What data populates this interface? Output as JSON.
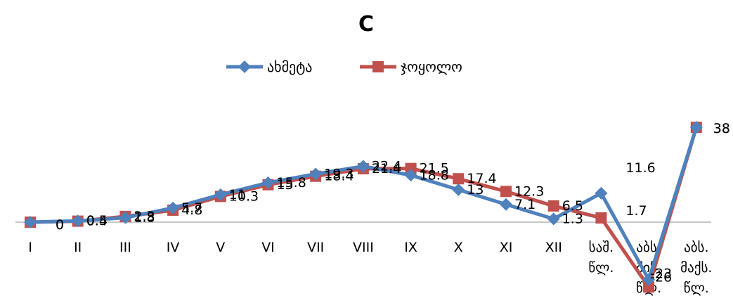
{
  "chart_data": {
    "type": "line",
    "title": "C",
    "xlabel": "",
    "ylabel": "",
    "legend_position": "top",
    "grid": false,
    "y_axis_visible": false,
    "ylim": [
      -30,
      45
    ],
    "categories": [
      [
        "I"
      ],
      [
        "II"
      ],
      [
        "III"
      ],
      [
        "IV"
      ],
      [
        "V"
      ],
      [
        "VI"
      ],
      [
        "VII"
      ],
      [
        "VIII"
      ],
      [
        "IX"
      ],
      [
        "X"
      ],
      [
        "XI"
      ],
      [
        "XII"
      ],
      [
        "საშ.",
        "წლ."
      ],
      [
        "აბს.",
        "მინ.",
        "წლ."
      ],
      [
        "აბს.",
        "მაქს.",
        "წლ."
      ]
    ],
    "series": [
      {
        "name": "ახმეტა",
        "color": "#4F81BD",
        "marker": "diamond",
        "values": [
          0,
          0.5,
          1.8,
          5.7,
          11,
          15.8,
          19.3,
          22.4,
          18.8,
          13,
          7.1,
          1.3,
          11.6,
          -23,
          38
        ],
        "labels": [
          "0",
          "0.5",
          "1.8",
          "5.7",
          "11",
          "15.8",
          "19.3",
          "22.4",
          "18.8",
          "13",
          "7.1",
          "1.3",
          "11.6",
          "-23",
          "38"
        ]
      },
      {
        "name": "ჯოყოლო",
        "color": "#C0504D",
        "marker": "square",
        "values": [
          0,
          0.4,
          2.3,
          4.8,
          10.3,
          15,
          18.4,
          21.4,
          21.5,
          17.4,
          12.3,
          6.5,
          1.7,
          -26,
          38
        ],
        "labels": [
          "0",
          "0.4",
          "2.3",
          "4.8",
          "10.3",
          "15",
          "18.4",
          "21.4",
          "21.5",
          "17.4",
          "12.3",
          "6.5",
          "1.7",
          "-26",
          "38"
        ]
      }
    ]
  }
}
